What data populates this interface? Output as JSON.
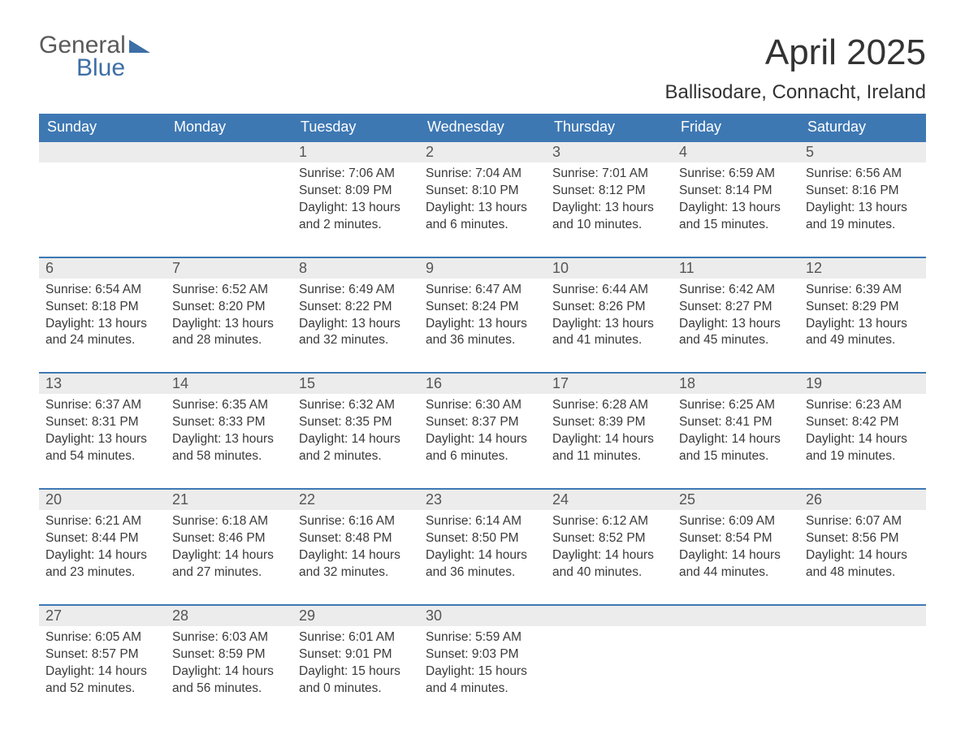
{
  "logo": {
    "word1": "General",
    "word2": "Blue"
  },
  "title": "April 2025",
  "location": "Ballisodare, Connacht, Ireland",
  "colors": {
    "header_bg": "#3e78b3",
    "header_text": "#ffffff",
    "daynum_bg": "#ececec",
    "daynum_border": "#3e78b3",
    "body_text": "#3a3a3a",
    "logo_blue": "#3d6fa6",
    "logo_gray": "#5a5a5a",
    "page_bg": "#ffffff"
  },
  "day_headers": [
    "Sunday",
    "Monday",
    "Tuesday",
    "Wednesday",
    "Thursday",
    "Friday",
    "Saturday"
  ],
  "weeks": [
    [
      {
        "blank": true
      },
      {
        "blank": true
      },
      {
        "num": "1",
        "sunrise": "Sunrise: 7:06 AM",
        "sunset": "Sunset: 8:09 PM",
        "daylight": "Daylight: 13 hours and 2 minutes."
      },
      {
        "num": "2",
        "sunrise": "Sunrise: 7:04 AM",
        "sunset": "Sunset: 8:10 PM",
        "daylight": "Daylight: 13 hours and 6 minutes."
      },
      {
        "num": "3",
        "sunrise": "Sunrise: 7:01 AM",
        "sunset": "Sunset: 8:12 PM",
        "daylight": "Daylight: 13 hours and 10 minutes."
      },
      {
        "num": "4",
        "sunrise": "Sunrise: 6:59 AM",
        "sunset": "Sunset: 8:14 PM",
        "daylight": "Daylight: 13 hours and 15 minutes."
      },
      {
        "num": "5",
        "sunrise": "Sunrise: 6:56 AM",
        "sunset": "Sunset: 8:16 PM",
        "daylight": "Daylight: 13 hours and 19 minutes."
      }
    ],
    [
      {
        "num": "6",
        "sunrise": "Sunrise: 6:54 AM",
        "sunset": "Sunset: 8:18 PM",
        "daylight": "Daylight: 13 hours and 24 minutes."
      },
      {
        "num": "7",
        "sunrise": "Sunrise: 6:52 AM",
        "sunset": "Sunset: 8:20 PM",
        "daylight": "Daylight: 13 hours and 28 minutes."
      },
      {
        "num": "8",
        "sunrise": "Sunrise: 6:49 AM",
        "sunset": "Sunset: 8:22 PM",
        "daylight": "Daylight: 13 hours and 32 minutes."
      },
      {
        "num": "9",
        "sunrise": "Sunrise: 6:47 AM",
        "sunset": "Sunset: 8:24 PM",
        "daylight": "Daylight: 13 hours and 36 minutes."
      },
      {
        "num": "10",
        "sunrise": "Sunrise: 6:44 AM",
        "sunset": "Sunset: 8:26 PM",
        "daylight": "Daylight: 13 hours and 41 minutes."
      },
      {
        "num": "11",
        "sunrise": "Sunrise: 6:42 AM",
        "sunset": "Sunset: 8:27 PM",
        "daylight": "Daylight: 13 hours and 45 minutes."
      },
      {
        "num": "12",
        "sunrise": "Sunrise: 6:39 AM",
        "sunset": "Sunset: 8:29 PM",
        "daylight": "Daylight: 13 hours and 49 minutes."
      }
    ],
    [
      {
        "num": "13",
        "sunrise": "Sunrise: 6:37 AM",
        "sunset": "Sunset: 8:31 PM",
        "daylight": "Daylight: 13 hours and 54 minutes."
      },
      {
        "num": "14",
        "sunrise": "Sunrise: 6:35 AM",
        "sunset": "Sunset: 8:33 PM",
        "daylight": "Daylight: 13 hours and 58 minutes."
      },
      {
        "num": "15",
        "sunrise": "Sunrise: 6:32 AM",
        "sunset": "Sunset: 8:35 PM",
        "daylight": "Daylight: 14 hours and 2 minutes."
      },
      {
        "num": "16",
        "sunrise": "Sunrise: 6:30 AM",
        "sunset": "Sunset: 8:37 PM",
        "daylight": "Daylight: 14 hours and 6 minutes."
      },
      {
        "num": "17",
        "sunrise": "Sunrise: 6:28 AM",
        "sunset": "Sunset: 8:39 PM",
        "daylight": "Daylight: 14 hours and 11 minutes."
      },
      {
        "num": "18",
        "sunrise": "Sunrise: 6:25 AM",
        "sunset": "Sunset: 8:41 PM",
        "daylight": "Daylight: 14 hours and 15 minutes."
      },
      {
        "num": "19",
        "sunrise": "Sunrise: 6:23 AM",
        "sunset": "Sunset: 8:42 PM",
        "daylight": "Daylight: 14 hours and 19 minutes."
      }
    ],
    [
      {
        "num": "20",
        "sunrise": "Sunrise: 6:21 AM",
        "sunset": "Sunset: 8:44 PM",
        "daylight": "Daylight: 14 hours and 23 minutes."
      },
      {
        "num": "21",
        "sunrise": "Sunrise: 6:18 AM",
        "sunset": "Sunset: 8:46 PM",
        "daylight": "Daylight: 14 hours and 27 minutes."
      },
      {
        "num": "22",
        "sunrise": "Sunrise: 6:16 AM",
        "sunset": "Sunset: 8:48 PM",
        "daylight": "Daylight: 14 hours and 32 minutes."
      },
      {
        "num": "23",
        "sunrise": "Sunrise: 6:14 AM",
        "sunset": "Sunset: 8:50 PM",
        "daylight": "Daylight: 14 hours and 36 minutes."
      },
      {
        "num": "24",
        "sunrise": "Sunrise: 6:12 AM",
        "sunset": "Sunset: 8:52 PM",
        "daylight": "Daylight: 14 hours and 40 minutes."
      },
      {
        "num": "25",
        "sunrise": "Sunrise: 6:09 AM",
        "sunset": "Sunset: 8:54 PM",
        "daylight": "Daylight: 14 hours and 44 minutes."
      },
      {
        "num": "26",
        "sunrise": "Sunrise: 6:07 AM",
        "sunset": "Sunset: 8:56 PM",
        "daylight": "Daylight: 14 hours and 48 minutes."
      }
    ],
    [
      {
        "num": "27",
        "sunrise": "Sunrise: 6:05 AM",
        "sunset": "Sunset: 8:57 PM",
        "daylight": "Daylight: 14 hours and 52 minutes."
      },
      {
        "num": "28",
        "sunrise": "Sunrise: 6:03 AM",
        "sunset": "Sunset: 8:59 PM",
        "daylight": "Daylight: 14 hours and 56 minutes."
      },
      {
        "num": "29",
        "sunrise": "Sunrise: 6:01 AM",
        "sunset": "Sunset: 9:01 PM",
        "daylight": "Daylight: 15 hours and 0 minutes."
      },
      {
        "num": "30",
        "sunrise": "Sunrise: 5:59 AM",
        "sunset": "Sunset: 9:03 PM",
        "daylight": "Daylight: 15 hours and 4 minutes."
      },
      {
        "blank": true
      },
      {
        "blank": true
      },
      {
        "blank": true
      }
    ]
  ]
}
